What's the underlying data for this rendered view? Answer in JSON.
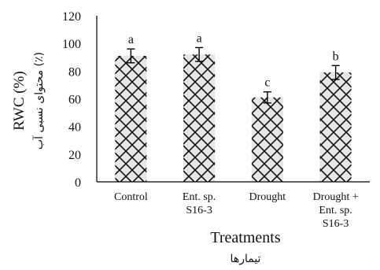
{
  "chart_data": {
    "type": "bar",
    "categories": [
      [
        "Control"
      ],
      [
        "Ent. sp.",
        "S16-3"
      ],
      [
        "Drought"
      ],
      [
        "Drought +",
        "Ent. sp.",
        "S16-3"
      ]
    ],
    "values": [
      91,
      92,
      61,
      79
    ],
    "errors": [
      5,
      5,
      4,
      5
    ],
    "significance_letters": [
      "a",
      "a",
      "c",
      "b"
    ],
    "xlabel": "Treatments",
    "xlabel_secondary": "تیمارها",
    "ylabel": "RWC (%)",
    "ylabel_secondary": "محتوای نسبی آب (٪)",
    "yticks": [
      "0",
      "20",
      "40",
      "60",
      "80",
      "100",
      "120"
    ],
    "ylim": [
      0,
      120
    ],
    "grid": false,
    "bar_pattern": "crosshatch",
    "colors": {
      "bar_pattern": "#111111",
      "bar_background": "#e6e6e6",
      "axis": "#000000"
    }
  }
}
